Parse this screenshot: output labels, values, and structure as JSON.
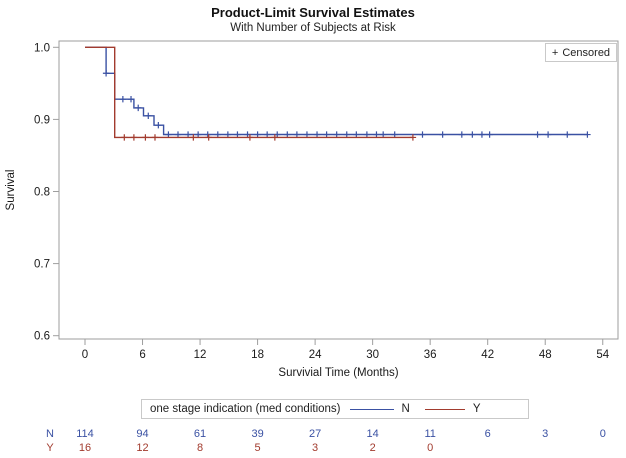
{
  "title": "Product-Limit Survival Estimates",
  "subtitle": "With Number of Subjects at Risk",
  "censored_legend": {
    "symbol": "+",
    "label": "Censored"
  },
  "colors": {
    "group_n": "#3a51a3",
    "group_y": "#a23b2e",
    "frame": "#9e9e9e",
    "text": "#1a1a1a",
    "legend_border": "#c9c9c9"
  },
  "chart_data": {
    "type": "line",
    "kind": "kaplan-meier-step",
    "title": "Product-Limit Survival Estimates",
    "subtitle": "With Number of Subjects at Risk",
    "xlabel": "Survivial Time (Months)",
    "ylabel": "Survival",
    "xlim": [
      -2.7,
      55.6
    ],
    "ylim": [
      0.595,
      1.009
    ],
    "x_ticks": [
      0,
      6,
      12,
      18,
      24,
      30,
      36,
      42,
      48,
      54
    ],
    "y_ticks": [
      1.0,
      0.9,
      0.8,
      0.7,
      0.6
    ],
    "grid": false,
    "legend_position": "bottom-outside",
    "series": [
      {
        "name": "N",
        "color": "#3a51a3",
        "steps": [
          [
            0,
            1.0
          ],
          [
            2.2,
            0.964
          ],
          [
            3.1,
            0.928
          ],
          [
            5.1,
            0.916
          ],
          [
            6.1,
            0.905
          ],
          [
            7.2,
            0.892
          ],
          [
            8.2,
            0.879
          ]
        ],
        "end": 52.4,
        "censor_times": [
          2.2,
          3.95,
          4.8,
          5.55,
          6.6,
          7.65,
          8.7,
          9.7,
          10.75,
          11.8,
          12.8,
          13.85,
          14.9,
          15.9,
          16.95,
          18.0,
          19.0,
          20.05,
          21.1,
          22.1,
          23.15,
          24.2,
          25.2,
          26.25,
          27.3,
          28.3,
          29.4,
          30.4,
          31.1,
          32.3,
          35.2,
          37.3,
          39.3,
          40.4,
          41.4,
          42.2,
          47.2,
          48.3,
          50.3,
          52.4
        ]
      },
      {
        "name": "Y",
        "color": "#a23b2e",
        "steps": [
          [
            0,
            1.0
          ],
          [
            3.1,
            0.875
          ]
        ],
        "end": 34.2,
        "censor_times": [
          4.1,
          5.1,
          6.3,
          7.3,
          11.3,
          12.9,
          17.2,
          19.8,
          34.2
        ]
      }
    ]
  },
  "group_legend": {
    "label": "one stage indication (med conditions)",
    "items": [
      {
        "label": "N",
        "color": "#3a51a3"
      },
      {
        "label": "Y",
        "color": "#a23b2e"
      }
    ]
  },
  "at_risk": {
    "rows": [
      {
        "label": "N",
        "color": "#3a51a3",
        "values": [
          "114",
          "94",
          "61",
          "39",
          "27",
          "14",
          "11",
          "6",
          "3",
          "0"
        ]
      },
      {
        "label": "Y",
        "color": "#a23b2e",
        "values": [
          "16",
          "12",
          "8",
          "5",
          "3",
          "2",
          "0"
        ]
      }
    ]
  }
}
